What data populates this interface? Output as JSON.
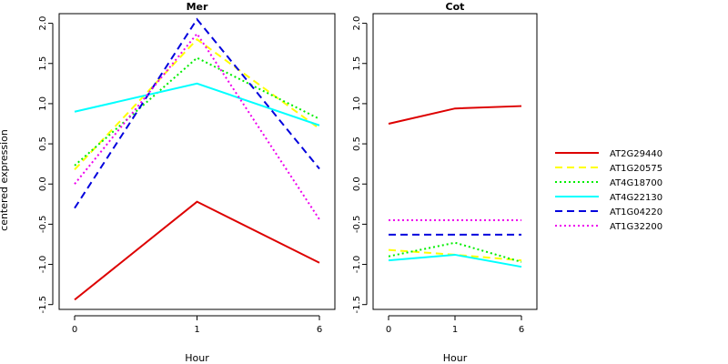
{
  "chart_data": {
    "type": "line",
    "ylabel": "centered expression",
    "xlabel": "Hour",
    "x": [
      "0",
      "1",
      "6"
    ],
    "ylim": [
      -1.5,
      2.0
    ],
    "yticks": [
      "-1.5",
      "-1.0",
      "-0.5",
      "0.0",
      "0.5",
      "1.0",
      "1.5",
      "2.0"
    ],
    "legend_position": "right",
    "grid": false,
    "panels": [
      {
        "title": "Mer",
        "series": [
          {
            "name": "AT2G29440",
            "color": "#dd0000",
            "style": "solid",
            "values": [
              -1.44,
              -0.22,
              -0.98
            ]
          },
          {
            "name": "AT1G20575",
            "color": "#ffff00",
            "style": "dashed",
            "values": [
              0.18,
              1.8,
              0.69
            ]
          },
          {
            "name": "AT4G18700",
            "color": "#00ee00",
            "style": "dotted",
            "values": [
              0.23,
              1.57,
              0.81
            ]
          },
          {
            "name": "AT4G22130",
            "color": "#00ffff",
            "style": "solid",
            "values": [
              0.9,
              1.25,
              0.73
            ]
          },
          {
            "name": "AT1G04220",
            "color": "#0000dd",
            "style": "dashed",
            "values": [
              -0.3,
              2.05,
              0.19
            ]
          },
          {
            "name": "AT1G32200",
            "color": "#ee00ee",
            "style": "dotted",
            "values": [
              0.0,
              1.87,
              -0.44
            ]
          }
        ]
      },
      {
        "title": "Cot",
        "series": [
          {
            "name": "AT2G29440",
            "color": "#dd0000",
            "style": "solid",
            "values": [
              0.75,
              0.94,
              0.97
            ]
          },
          {
            "name": "AT1G20575",
            "color": "#ffff00",
            "style": "dashed",
            "values": [
              -0.82,
              -0.88,
              -0.95
            ]
          },
          {
            "name": "AT4G18700",
            "color": "#00ee00",
            "style": "dotted",
            "values": [
              -0.9,
              -0.73,
              -0.97
            ]
          },
          {
            "name": "AT4G22130",
            "color": "#00ffff",
            "style": "solid",
            "values": [
              -0.95,
              -0.88,
              -1.03
            ]
          },
          {
            "name": "AT1G04220",
            "color": "#0000dd",
            "style": "dashed",
            "values": [
              -0.63,
              -0.63,
              -0.63
            ]
          },
          {
            "name": "AT1G32200",
            "color": "#ee00ee",
            "style": "dotted",
            "values": [
              -0.45,
              -0.45,
              -0.45
            ]
          }
        ]
      }
    ]
  }
}
